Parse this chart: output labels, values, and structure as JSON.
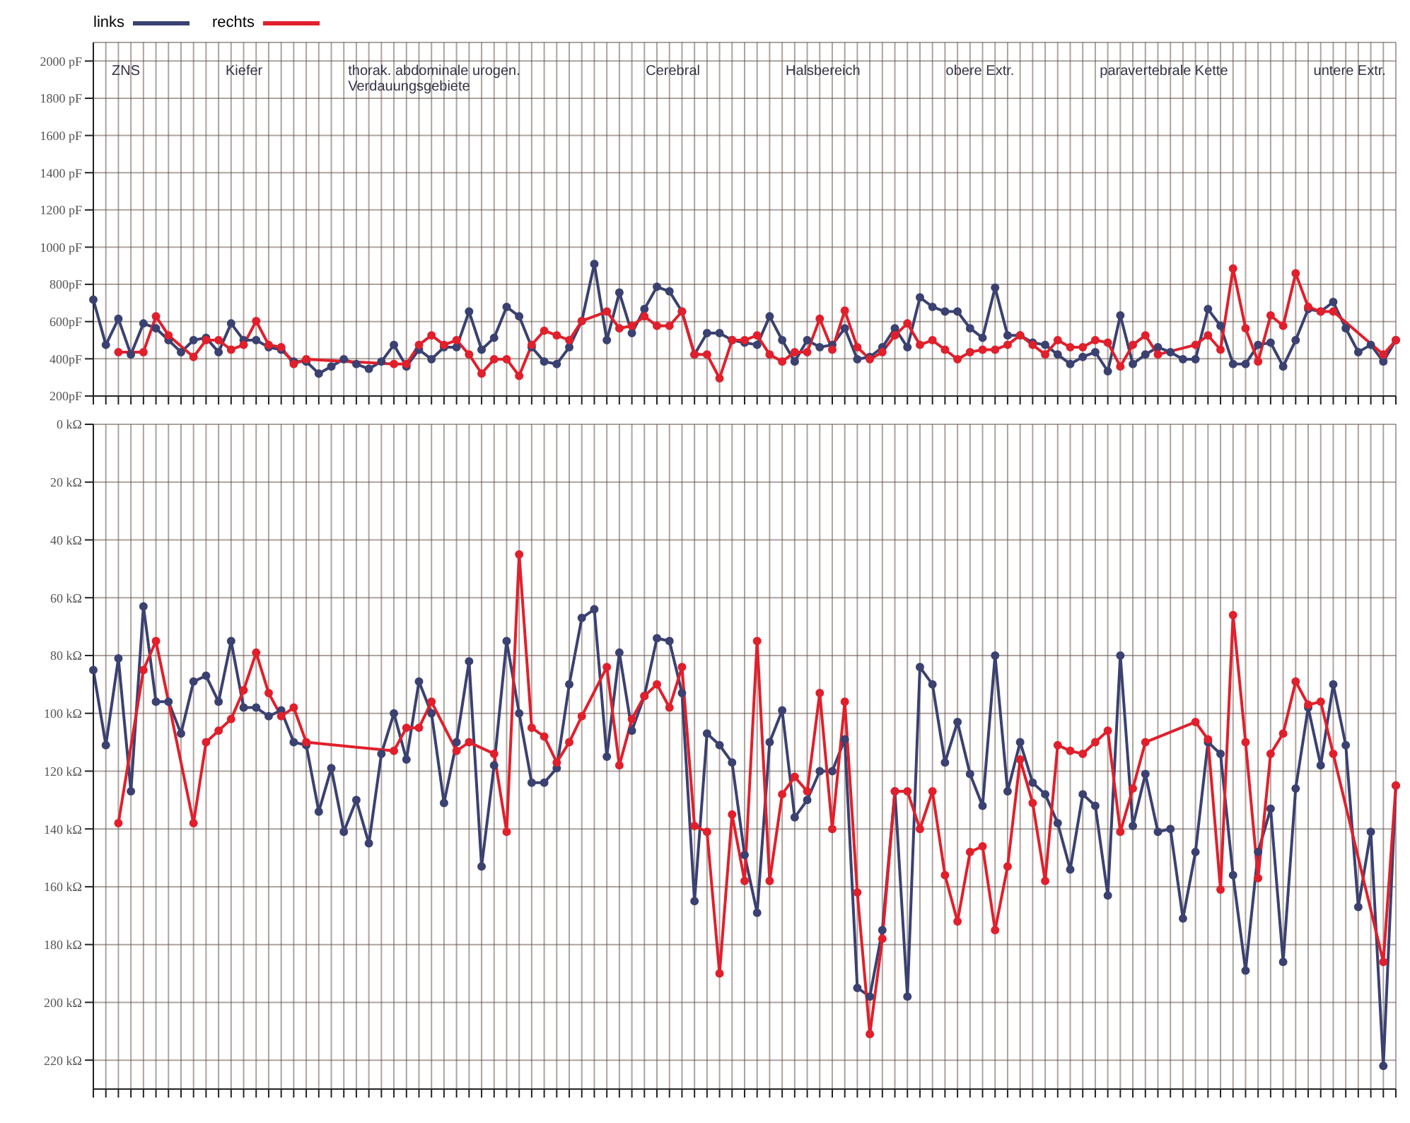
{
  "chart_data": [
    {
      "type": "line",
      "legend": "top left",
      "grid": true,
      "marker": "circle",
      "line_style": "solid",
      "annotations": [
        "ZNS",
        "Kiefer",
        "thorak. abdominale urogen. Verdauungsgebiete",
        "Cerebral",
        "Halsbereich",
        "obere Extr.",
        "paravertebrale Kette",
        "untere Extr."
      ],
      "categories": [
        null,
        null,
        null,
        null,
        null,
        null,
        null,
        null,
        null,
        null,
        null,
        null,
        null,
        null,
        null,
        null,
        null,
        null,
        null,
        null,
        null,
        null,
        null,
        null,
        null,
        null,
        null,
        null,
        null,
        null,
        null,
        null,
        null,
        null,
        null,
        null,
        null,
        null,
        null,
        null,
        null,
        null,
        null,
        null,
        null,
        null,
        null,
        null,
        null,
        null,
        null,
        null,
        null,
        null,
        null,
        null,
        null,
        null,
        null,
        null,
        null,
        null,
        null,
        null,
        null,
        null,
        null,
        null,
        null,
        null,
        null,
        null,
        null,
        null,
        null,
        null,
        null,
        null,
        null,
        null,
        null,
        null,
        null,
        null,
        null,
        null,
        null,
        null,
        null,
        null,
        null,
        null,
        null,
        null,
        null,
        null,
        null,
        null,
        null,
        null,
        null,
        null,
        null,
        null,
        null
      ],
      "ylim": [
        200,
        2100
      ],
      "yticks": [
        {
          "value": 200,
          "label": "200pF"
        },
        {
          "value": 400,
          "label": "400pF"
        },
        {
          "value": 600,
          "label": "600pF"
        },
        {
          "value": 800,
          "label": "800pF"
        },
        {
          "value": 1000,
          "label": "1000 pF"
        },
        {
          "value": 1200,
          "label": "1200 pF"
        },
        {
          "value": 1400,
          "label": "1400 pF"
        },
        {
          "value": 1600,
          "label": "1600 pF"
        },
        {
          "value": 1800,
          "label": "1800 pF"
        },
        {
          "value": 2000,
          "label": "2000 pF"
        }
      ],
      "series": [
        {
          "name": "links",
          "color": "#3b4170",
          "values": [
            718,
            475,
            615,
            423,
            590,
            564,
            500,
            436,
            500,
            513,
            436,
            590,
            500,
            500,
            462,
            449,
            385,
            385,
            321,
            359,
            398,
            372,
            346,
            385,
            475,
            359,
            449,
            398,
            462,
            462,
            654,
            449,
            513,
            679,
            628,
            462,
            385,
            372,
            462,
            603,
            910,
            500,
            756,
            538,
            667,
            787,
            762,
            654,
            423,
            538,
            538,
            500,
            487,
            475,
            628,
            500,
            385,
            500,
            462,
            475,
            564,
            398,
            410,
            462,
            564,
            462,
            730,
            679,
            654,
            654,
            564,
            513,
            782,
            526,
            526,
            487,
            475,
            423,
            372,
            410,
            436,
            333,
            633,
            372,
            423,
            462,
            436,
            398,
            398,
            667,
            577,
            372,
            372,
            475,
            487,
            359,
            500,
            667,
            654,
            705,
            564,
            436,
            475,
            385,
            500
          ]
        },
        {
          "name": "rechts",
          "color": "#e0202c",
          "values": [
            null,
            null,
            436,
            null,
            436,
            628,
            526,
            null,
            410,
            500,
            500,
            449,
            475,
            603,
            475,
            462,
            372,
            398,
            null,
            null,
            null,
            null,
            null,
            null,
            372,
            372,
            475,
            526,
            475,
            500,
            423,
            321,
            398,
            398,
            308,
            475,
            551,
            526,
            500,
            603,
            null,
            654,
            564,
            577,
            628,
            577,
            577,
            654,
            423,
            423,
            295,
            500,
            500,
            526,
            423,
            385,
            436,
            436,
            615,
            449,
            659,
            462,
            398,
            436,
            526,
            590,
            475,
            500,
            449,
            398,
            436,
            449,
            449,
            475,
            526,
            475,
            423,
            500,
            462,
            462,
            500,
            487,
            359,
            475,
            526,
            423,
            null,
            null,
            475,
            526,
            449,
            885,
            564,
            385,
            633,
            577,
            859,
            679,
            654,
            654,
            null,
            null,
            null,
            423,
            500
          ]
        }
      ]
    },
    {
      "type": "line",
      "grid": true,
      "marker": "circle",
      "line_style": "solid",
      "categories": [
        null,
        null,
        null,
        null,
        null,
        null,
        null,
        null,
        null,
        null,
        null,
        null,
        null,
        null,
        null,
        null,
        null,
        null,
        null,
        null,
        null,
        null,
        null,
        null,
        null,
        null,
        null,
        null,
        null,
        null,
        null,
        null,
        null,
        null,
        null,
        null,
        null,
        null,
        null,
        null,
        null,
        null,
        null,
        null,
        null,
        null,
        null,
        null,
        null,
        null,
        null,
        null,
        null,
        null,
        null,
        null,
        null,
        null,
        null,
        null,
        null,
        null,
        null,
        null,
        null,
        null,
        null,
        null,
        null,
        null,
        null,
        null,
        null,
        null,
        null,
        null,
        null,
        null,
        null,
        null,
        null,
        null,
        null,
        null,
        null,
        null,
        null,
        null,
        null,
        null,
        null,
        null,
        null,
        null,
        null,
        null,
        null,
        null,
        null,
        null,
        null,
        null,
        null,
        null,
        null
      ],
      "ylim": [
        230,
        0
      ],
      "yticks": [
        {
          "value": 0,
          "label": "0 kΩ"
        },
        {
          "value": 20,
          "label": "20 kΩ"
        },
        {
          "value": 40,
          "label": "40 kΩ"
        },
        {
          "value": 60,
          "label": "60 kΩ"
        },
        {
          "value": 80,
          "label": "80 kΩ"
        },
        {
          "value": 100,
          "label": "100 kΩ"
        },
        {
          "value": 120,
          "label": "120 kΩ"
        },
        {
          "value": 140,
          "label": "140 kΩ"
        },
        {
          "value": 160,
          "label": "160 kΩ"
        },
        {
          "value": 180,
          "label": "180 kΩ"
        },
        {
          "value": 200,
          "label": "200 kΩ"
        },
        {
          "value": 220,
          "label": "220 kΩ"
        }
      ],
      "series": [
        {
          "color": "#3b4170",
          "values": [
            85,
            111,
            81,
            127,
            63,
            96,
            96,
            107,
            89,
            87,
            96,
            75,
            98,
            98,
            101,
            99,
            110,
            111,
            134,
            119,
            141,
            130,
            145,
            114,
            100,
            116,
            89,
            100,
            131,
            110,
            82,
            153,
            118,
            75,
            100,
            124,
            124,
            119,
            90,
            67,
            64,
            115,
            79,
            106,
            94,
            74,
            75,
            93,
            165,
            107,
            111,
            117,
            149,
            169,
            110,
            99,
            136,
            130,
            120,
            120,
            109,
            195,
            198,
            175,
            127,
            198,
            84,
            90,
            117,
            103,
            121,
            132,
            80,
            127,
            110,
            124,
            128,
            138,
            154,
            128,
            132,
            163,
            80,
            139,
            121,
            141,
            140,
            171,
            148,
            110,
            114,
            156,
            189,
            148,
            133,
            186,
            126,
            98,
            118,
            90,
            111,
            167,
            141,
            222,
            125
          ]
        },
        {
          "color": "#e0202c",
          "values": [
            null,
            null,
            138,
            null,
            85,
            75,
            null,
            null,
            138,
            110,
            106,
            102,
            92,
            79,
            93,
            101,
            98,
            110,
            null,
            null,
            null,
            null,
            null,
            null,
            113,
            105,
            105,
            96,
            null,
            113,
            110,
            null,
            114,
            141,
            45,
            105,
            108,
            117,
            110,
            101,
            null,
            84,
            118,
            102,
            94,
            90,
            98,
            84,
            139,
            141,
            190,
            135,
            158,
            75,
            158,
            128,
            122,
            127,
            93,
            140,
            96,
            162,
            211,
            178,
            127,
            127,
            140,
            127,
            156,
            172,
            148,
            146,
            175,
            153,
            116,
            131,
            158,
            111,
            113,
            114,
            110,
            106,
            141,
            126,
            110,
            null,
            null,
            null,
            103,
            109,
            161,
            66,
            110,
            157,
            114,
            107,
            89,
            97,
            96,
            114,
            null,
            null,
            null,
            186,
            125
          ]
        }
      ]
    }
  ]
}
